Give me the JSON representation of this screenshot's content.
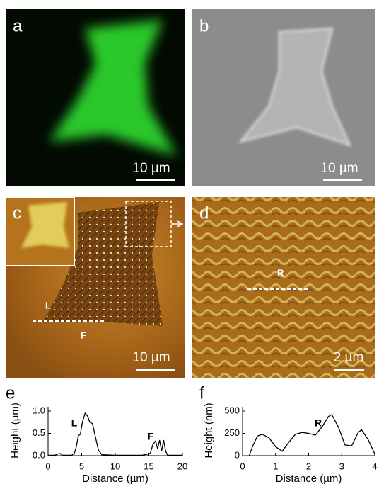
{
  "panels": [
    {
      "label": "a",
      "scale_bar": "10 µm"
    },
    {
      "label": "b",
      "scale_bar": "10 µm"
    },
    {
      "label": "c",
      "scale_bar": "10 µm",
      "annotations": [
        "L",
        "F"
      ]
    },
    {
      "label": "d",
      "scale_bar": "2 µm",
      "annotations": [
        "R"
      ]
    }
  ],
  "chart_data": [
    {
      "type": "line",
      "title": "e",
      "x_label": "Distance (µm)",
      "y_label": "Height (µm)",
      "x": [
        0,
        1,
        1.5,
        1.8,
        2.1,
        3.5,
        3.9,
        4.2,
        4.5,
        4.8,
        5.1,
        5.5,
        5.9,
        6.2,
        6.6,
        7.0,
        7.5,
        8,
        10,
        14,
        15.2,
        15.6,
        16,
        16.3,
        16.6,
        16.9,
        17.2,
        17.5,
        17.8,
        20
      ],
      "series": [
        {
          "color": "#000000",
          "values": [
            0.01,
            0.01,
            0.04,
            0.05,
            0.01,
            0.01,
            0.05,
            0.2,
            0.45,
            0.48,
            0.75,
            0.95,
            0.88,
            0.75,
            0.72,
            0.45,
            0.12,
            0.02,
            0.01,
            0.01,
            0.05,
            0.25,
            0.33,
            0.15,
            0.35,
            0.1,
            0.35,
            0.1,
            0.01,
            0.01
          ]
        }
      ],
      "annotations": [
        "L",
        "F"
      ],
      "xlim": [
        0,
        20
      ],
      "xticks": [
        0,
        5,
        10,
        15,
        20
      ],
      "ylim": [
        0,
        1.0
      ],
      "yticks": [
        {
          "value": 0,
          "label": "0.0"
        },
        0.5,
        {
          "value": 1,
          "label": "1.0"
        }
      ]
    },
    {
      "type": "line",
      "title": "f",
      "x_label": "Distance (µm)",
      "y_label": "Height (nm)",
      "x": [
        0.2,
        0.3,
        0.45,
        0.6,
        0.8,
        1.0,
        1.2,
        1.4,
        1.6,
        1.8,
        2.0,
        2.2,
        2.4,
        2.6,
        2.7,
        2.9,
        3.1,
        3.3,
        3.5,
        3.6,
        3.8,
        4.0
      ],
      "series": [
        {
          "color": "#000000",
          "values": [
            0,
            100,
            220,
            240,
            200,
            100,
            50,
            150,
            240,
            260,
            250,
            230,
            320,
            440,
            460,
            320,
            120,
            110,
            260,
            290,
            180,
            20
          ]
        }
      ],
      "annotations": [
        "R"
      ],
      "xlim": [
        0,
        4
      ],
      "xticks": [
        0,
        1,
        2,
        3,
        4
      ],
      "ylim": [
        0,
        500
      ],
      "yticks": [
        0,
        250,
        500
      ]
    }
  ]
}
